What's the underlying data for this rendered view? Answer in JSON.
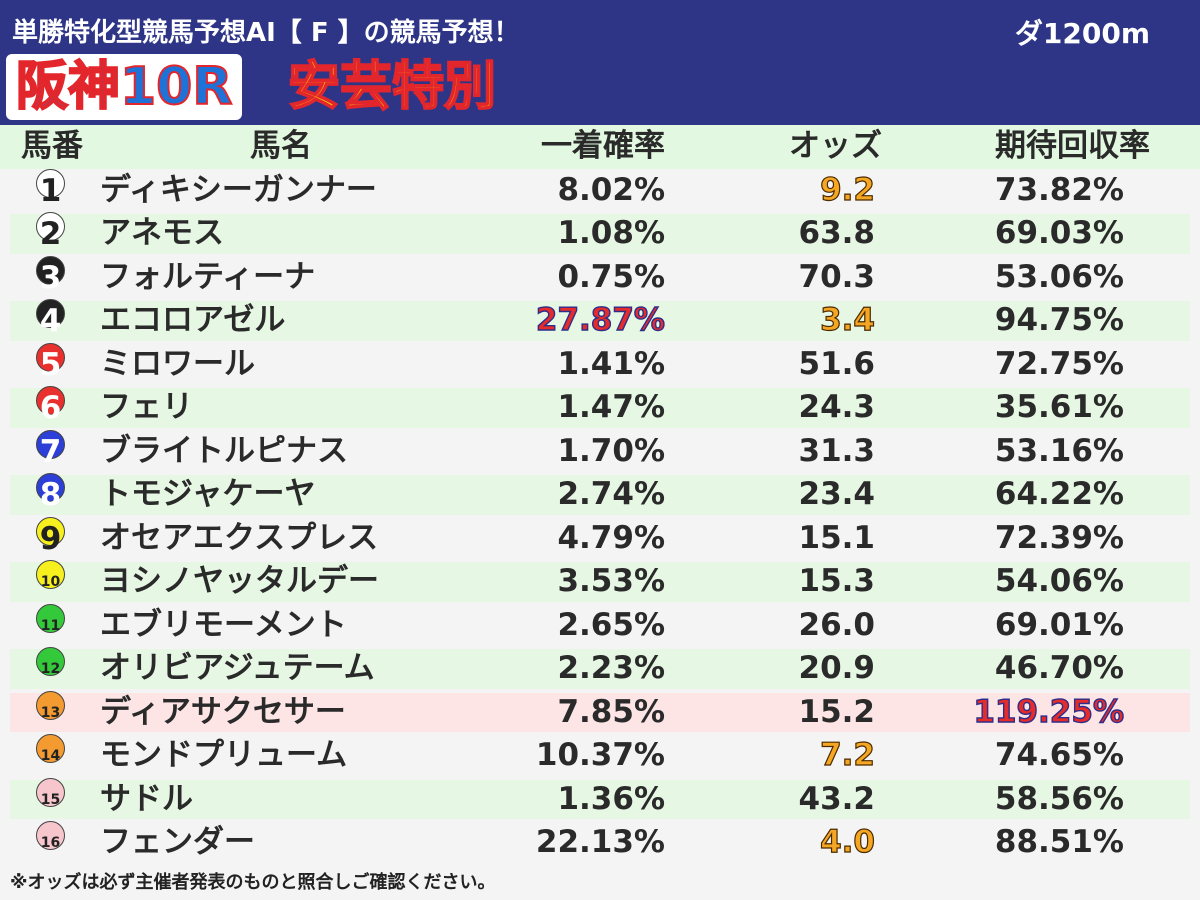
{
  "header": {
    "subtitle": "単勝特化型競馬予想AI【 F 】の競馬予想！",
    "distance": "ダ1200m",
    "venue": "阪神10R",
    "race_name": "安芸特別"
  },
  "columns": {
    "num": "馬番",
    "name": "馬名",
    "prob": "一着確率",
    "odds": "オッズ",
    "ret": "期待回収率"
  },
  "colors": {
    "header_bg": "#2e3587",
    "row_green": "#e6f8e4",
    "row_pink": "#fde5e6",
    "highlight_orange": "#f5a623",
    "highlight_red": "#e62b2b"
  },
  "rows": [
    {
      "num": "1",
      "name": "ディキシーガンナー",
      "prob": "8.02%",
      "odds": "9.2",
      "ret": "73.82%",
      "circle_bg": "#ffffff",
      "circle_fg": "#222222",
      "row_style": "white",
      "odds_hl": "orange",
      "prob_hl": "",
      "ret_hl": ""
    },
    {
      "num": "2",
      "name": "アネモス",
      "prob": "1.08%",
      "odds": "63.8",
      "ret": "69.03%",
      "circle_bg": "#ffffff",
      "circle_fg": "#222222",
      "row_style": "alt",
      "odds_hl": "",
      "prob_hl": "",
      "ret_hl": ""
    },
    {
      "num": "3",
      "name": "フォルティーナ",
      "prob": "0.75%",
      "odds": "70.3",
      "ret": "53.06%",
      "circle_bg": "#222222",
      "circle_fg": "#ffffff",
      "row_style": "white",
      "odds_hl": "",
      "prob_hl": "",
      "ret_hl": ""
    },
    {
      "num": "4",
      "name": "エコロアゼル",
      "prob": "27.87%",
      "odds": "3.4",
      "ret": "94.75%",
      "circle_bg": "#222222",
      "circle_fg": "#ffffff",
      "row_style": "alt",
      "odds_hl": "orange",
      "prob_hl": "red",
      "ret_hl": ""
    },
    {
      "num": "5",
      "name": "ミロワール",
      "prob": "1.41%",
      "odds": "51.6",
      "ret": "72.75%",
      "circle_bg": "#e8312f",
      "circle_fg": "#ffffff",
      "row_style": "white",
      "odds_hl": "",
      "prob_hl": "",
      "ret_hl": ""
    },
    {
      "num": "6",
      "name": "フェリ",
      "prob": "1.47%",
      "odds": "24.3",
      "ret": "35.61%",
      "circle_bg": "#e8312f",
      "circle_fg": "#ffffff",
      "row_style": "alt",
      "odds_hl": "",
      "prob_hl": "",
      "ret_hl": ""
    },
    {
      "num": "7",
      "name": "ブライトルピナス",
      "prob": "1.70%",
      "odds": "31.3",
      "ret": "53.16%",
      "circle_bg": "#2c3fd6",
      "circle_fg": "#ffffff",
      "row_style": "white",
      "odds_hl": "",
      "prob_hl": "",
      "ret_hl": ""
    },
    {
      "num": "8",
      "name": "トモジャケーヤ",
      "prob": "2.74%",
      "odds": "23.4",
      "ret": "64.22%",
      "circle_bg": "#2c3fd6",
      "circle_fg": "#ffffff",
      "row_style": "alt",
      "odds_hl": "",
      "prob_hl": "",
      "ret_hl": ""
    },
    {
      "num": "9",
      "name": "オセアエクスプレス",
      "prob": "4.79%",
      "odds": "15.1",
      "ret": "72.39%",
      "circle_bg": "#f7f01e",
      "circle_fg": "#222222",
      "row_style": "white",
      "odds_hl": "",
      "prob_hl": "",
      "ret_hl": ""
    },
    {
      "num": "10",
      "name": "ヨシノヤッタルデー",
      "prob": "3.53%",
      "odds": "15.3",
      "ret": "54.06%",
      "circle_bg": "#f7f01e",
      "circle_fg": "#222222",
      "row_style": "alt",
      "odds_hl": "",
      "prob_hl": "",
      "ret_hl": ""
    },
    {
      "num": "11",
      "name": "エブリモーメント",
      "prob": "2.65%",
      "odds": "26.0",
      "ret": "69.01%",
      "circle_bg": "#33c93a",
      "circle_fg": "#222222",
      "row_style": "white",
      "odds_hl": "",
      "prob_hl": "",
      "ret_hl": ""
    },
    {
      "num": "12",
      "name": "オリビアジュテーム",
      "prob": "2.23%",
      "odds": "20.9",
      "ret": "46.70%",
      "circle_bg": "#33c93a",
      "circle_fg": "#222222",
      "row_style": "alt",
      "odds_hl": "",
      "prob_hl": "",
      "ret_hl": ""
    },
    {
      "num": "13",
      "name": "ディアサクセサー",
      "prob": "7.85%",
      "odds": "15.2",
      "ret": "119.25%",
      "circle_bg": "#f39a30",
      "circle_fg": "#222222",
      "row_style": "pink",
      "odds_hl": "",
      "prob_hl": "",
      "ret_hl": "red"
    },
    {
      "num": "14",
      "name": "モンドプリューム",
      "prob": "10.37%",
      "odds": "7.2",
      "ret": "74.65%",
      "circle_bg": "#f39a30",
      "circle_fg": "#222222",
      "row_style": "white",
      "odds_hl": "orange",
      "prob_hl": "",
      "ret_hl": ""
    },
    {
      "num": "15",
      "name": "サドル",
      "prob": "1.36%",
      "odds": "43.2",
      "ret": "58.56%",
      "circle_bg": "#f6c6cc",
      "circle_fg": "#222222",
      "row_style": "alt",
      "odds_hl": "",
      "prob_hl": "",
      "ret_hl": ""
    },
    {
      "num": "16",
      "name": "フェンダー",
      "prob": "22.13%",
      "odds": "4.0",
      "ret": "88.51%",
      "circle_bg": "#f6c6cc",
      "circle_fg": "#222222",
      "row_style": "white",
      "odds_hl": "orange",
      "prob_hl": "",
      "ret_hl": ""
    }
  ],
  "note": "※オッズは必ず主催者発表のものと照合しご確認ください。"
}
